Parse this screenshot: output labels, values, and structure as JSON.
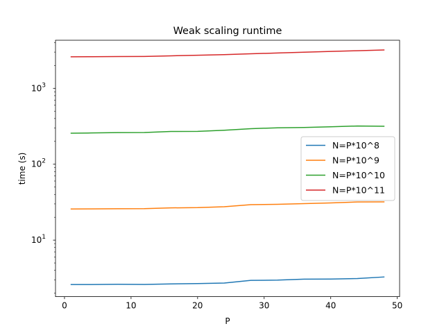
{
  "chart_data": {
    "type": "line",
    "title": "Weak scaling runtime",
    "xlabel": "P",
    "ylabel": "time (s)",
    "yscale": "log",
    "xlim": [
      -1.35,
      50.35
    ],
    "ylim": [
      1.8,
      4300
    ],
    "x_ticks": [
      {
        "value": 0,
        "label": "0"
      },
      {
        "value": 10,
        "label": "10"
      },
      {
        "value": 20,
        "label": "20"
      },
      {
        "value": 30,
        "label": "30"
      },
      {
        "value": 40,
        "label": "40"
      },
      {
        "value": 50,
        "label": "50"
      }
    ],
    "y_ticks": [
      {
        "value": 10,
        "base": "10",
        "exp": "1"
      },
      {
        "value": 100,
        "base": "10",
        "exp": "2"
      },
      {
        "value": 1000,
        "base": "10",
        "exp": "3"
      }
    ],
    "grid": false,
    "legend_position": "center-right",
    "x": [
      1,
      4,
      8,
      12,
      16,
      20,
      24,
      28,
      32,
      36,
      40,
      44,
      48
    ],
    "series": [
      {
        "name": "N=P*10^8",
        "color": "#1f77b4",
        "values": [
          2.6,
          2.6,
          2.62,
          2.61,
          2.65,
          2.68,
          2.72,
          2.95,
          2.97,
          3.06,
          3.07,
          3.12,
          3.27
        ]
      },
      {
        "name": "N=P*10^9",
        "color": "#ff7f0e",
        "values": [
          25.7,
          25.8,
          25.9,
          26.0,
          26.6,
          26.8,
          27.5,
          29.3,
          29.6,
          30.3,
          30.9,
          31.8,
          31.9
        ]
      },
      {
        "name": "N=P*10^10",
        "color": "#2ca02c",
        "values": [
          256,
          258,
          261,
          262,
          270,
          271,
          280,
          294,
          302,
          305,
          311,
          319,
          316
        ]
      },
      {
        "name": "N=P*10^11",
        "color": "#d62728",
        "values": [
          2600,
          2610,
          2620,
          2630,
          2680,
          2730,
          2780,
          2850,
          2920,
          2990,
          3060,
          3130,
          3200
        ]
      }
    ]
  }
}
